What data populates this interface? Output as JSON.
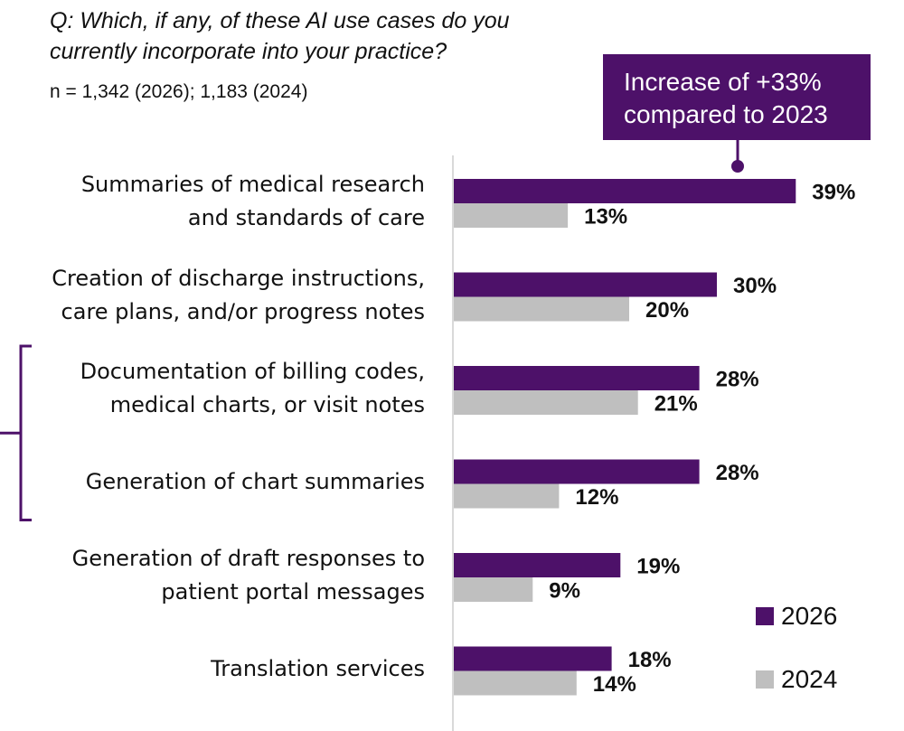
{
  "question": {
    "lines": [
      "Q: Which, if any, of these AI use cases do you",
      "currently incorporate into your practice?"
    ]
  },
  "sample_size": "n = 1,342 (2026); 1,183 (2024)",
  "callout": {
    "lines": [
      "Increase of +33%",
      "compared to 2023"
    ],
    "target_category_index": 0
  },
  "bracket": {
    "category_indices": [
      2,
      3
    ]
  },
  "colors": {
    "series_2026": "#4d1169",
    "series_2024": "#bfbfbf",
    "axis": "#d9d9d9",
    "bracket": "#4d1169"
  },
  "chart_data": {
    "type": "bar",
    "orientation": "horizontal",
    "title": "Which, if any, of these AI use cases do you currently incorporate into your practice?",
    "xlabel": "",
    "ylabel": "",
    "xlim": [
      0,
      45
    ],
    "grid": false,
    "legend_position": "bottom-right",
    "categories": [
      [
        "Summaries of medical research",
        "and standards of care"
      ],
      [
        "Creation of discharge instructions,",
        "care plans, and/or progress notes"
      ],
      [
        "Documentation of billing codes,",
        "medical charts, or visit notes"
      ],
      [
        "Generation of chart summaries"
      ],
      [
        "Generation of draft responses to",
        "patient portal messages"
      ],
      [
        "Translation services"
      ]
    ],
    "series": [
      {
        "name": "2026",
        "values": [
          39,
          30,
          28,
          28,
          19,
          18
        ],
        "labels": [
          "39%",
          "30%",
          "28%",
          "28%",
          "19%",
          "18%"
        ]
      },
      {
        "name": "2024",
        "values": [
          13,
          20,
          21,
          12,
          9,
          14
        ],
        "labels": [
          "13%",
          "20%",
          "21%",
          "12%",
          "9%",
          "14%"
        ]
      }
    ]
  }
}
